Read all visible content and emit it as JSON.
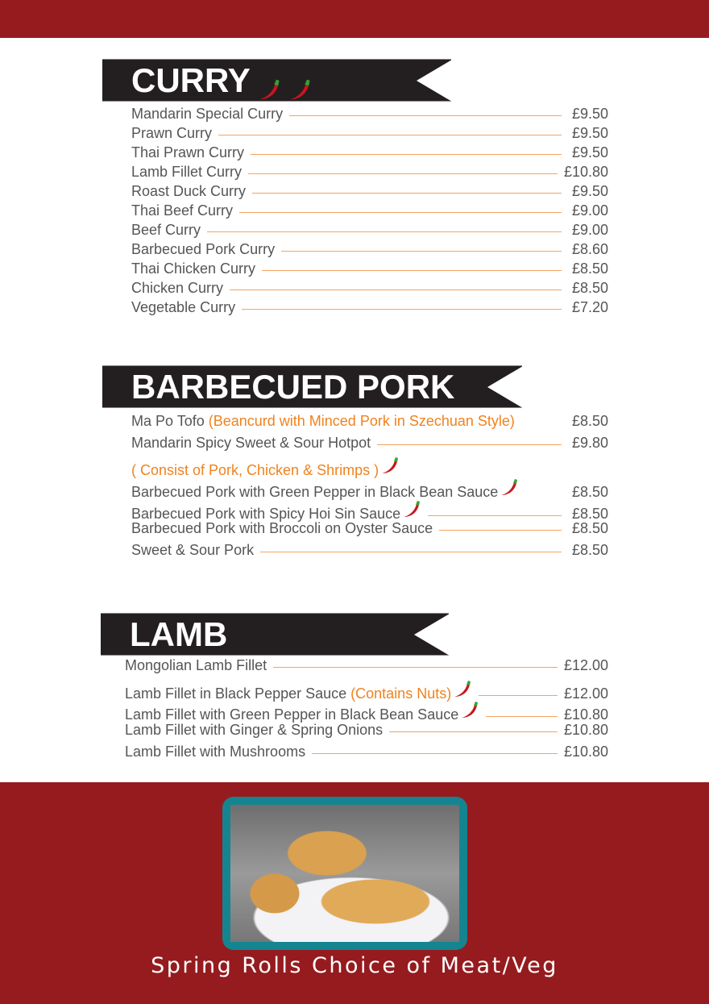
{
  "colors": {
    "brand_red": "#951b1f",
    "banner": "#231f20",
    "accent_orange": "#f0821e",
    "frame_teal": "#148590"
  },
  "sections": [
    {
      "title": "CURRY",
      "title_chilies": 2,
      "rows": [
        {
          "name": "Mandarin Special Curry",
          "price": "£9.50"
        },
        {
          "name": "Prawn Curry",
          "price": "£9.50"
        },
        {
          "name": "Thai Prawn Curry",
          "price": "£9.50"
        },
        {
          "name": "Lamb Fillet Curry",
          "price": "£10.80"
        },
        {
          "name": "Roast Duck Curry",
          "price": "£9.50"
        },
        {
          "name": "Thai Beef Curry",
          "price": "£9.00"
        },
        {
          "name": "Beef Curry",
          "price": "£9.00"
        },
        {
          "name": "Barbecued Pork Curry",
          "price": "£8.60"
        },
        {
          "name": "Thai Chicken Curry",
          "price": "£8.50"
        },
        {
          "name": "Chicken Curry",
          "price": "£8.50"
        },
        {
          "name": "Vegetable Curry",
          "price": "£7.20"
        }
      ]
    },
    {
      "title": "BARBECUED PORK",
      "title_chilies": 0,
      "rows": [
        {
          "name": "Ma Po Tofo",
          "note": "(Beancurd with Minced Pork in Szechuan Style)",
          "leader": false,
          "price": "£8.50"
        },
        {
          "name": "Mandarin Spicy Sweet & Sour Hotpot",
          "price": "£9.80"
        },
        {
          "name": "",
          "note": "( Consist of Pork, Chicken & Shrimps )",
          "chili": true,
          "leader": false,
          "price": ""
        },
        {
          "name": "Barbecued Pork with Green Pepper in Black Bean Sauce",
          "chili": true,
          "leader": false,
          "price": "£8.50"
        },
        {
          "name": "Barbecued Pork with Spicy Hoi Sin Sauce",
          "chili": true,
          "price": "£8.50"
        },
        {
          "name": "Barbecued Pork with Broccoli on Oyster Sauce",
          "price": "£8.50"
        },
        {
          "name": "Sweet & Sour Pork",
          "price": "£8.50"
        }
      ]
    },
    {
      "title": "LAMB",
      "title_chilies": 0,
      "rows": [
        {
          "name": "Mongolian Lamb Fillet",
          "price": "£12.00"
        },
        {
          "name": "Lamb Fillet in Black Pepper Sauce",
          "note": "(Contains Nuts)",
          "chili": true,
          "price": "£12.00"
        },
        {
          "name": "Lamb Fillet with Green Pepper in Black Bean Sauce",
          "chili": true,
          "price": "£10.80"
        },
        {
          "name": "Lamb Fillet with Ginger & Spring Onions",
          "price": "£10.80"
        },
        {
          "name": "Lamb Fillet with Mushrooms",
          "price": "£10.80"
        }
      ]
    }
  ],
  "feature": {
    "caption": "Spring Rolls Choice of Meat/Veg",
    "image": "spring-rolls-photo"
  }
}
